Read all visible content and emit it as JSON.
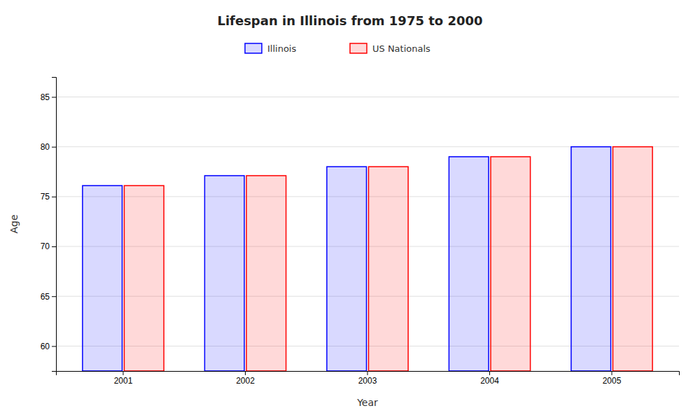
{
  "chart_data": {
    "type": "bar",
    "title": "Lifespan in Illinois from 1975 to 2000",
    "x_label": "Year",
    "y_label": "Age",
    "categories": [
      "2001",
      "2002",
      "2003",
      "2004",
      "2005"
    ],
    "series": [
      {
        "name": "Illinois",
        "color": "#0000ff",
        "values": [
          76.1,
          77.1,
          78.0,
          79.0,
          80.0
        ]
      },
      {
        "name": "US Nationals",
        "color": "#ff0000",
        "values": [
          76.1,
          77.1,
          78.0,
          79.0,
          80.0
        ]
      }
    ],
    "ylim": [
      57.5,
      87
    ],
    "yticks": [
      60,
      65,
      70,
      75,
      80,
      85
    ],
    "grid": true,
    "legend": "top"
  }
}
